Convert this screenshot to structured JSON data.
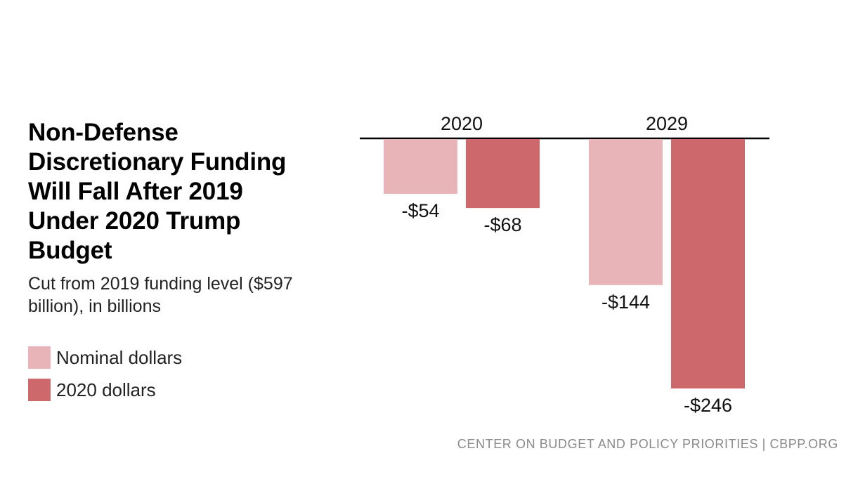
{
  "chart_data": {
    "type": "bar",
    "title": "Non-Defense Discretionary Funding Will Fall After 2019 Under 2020 Trump Budget",
    "subtitle": "Cut from 2019 funding level ($597 billion), in billions",
    "categories": [
      "2020",
      "2029"
    ],
    "series": [
      {
        "name": "Nominal dollars",
        "color": "#e8b4b8",
        "values": [
          -54,
          -144
        ],
        "labels": [
          "-$54",
          "-$144"
        ]
      },
      {
        "name": "2020 dollars",
        "color": "#cd686d",
        "values": [
          -68,
          -246
        ],
        "labels": [
          "-$68",
          "-$246"
        ]
      }
    ],
    "ylim": [
      -246,
      0
    ],
    "xlabel": "",
    "ylabel": "",
    "legend_position": "left",
    "grid": false
  },
  "source": "CENTER ON BUDGET AND POLICY PRIORITIES | CBPP.ORG"
}
